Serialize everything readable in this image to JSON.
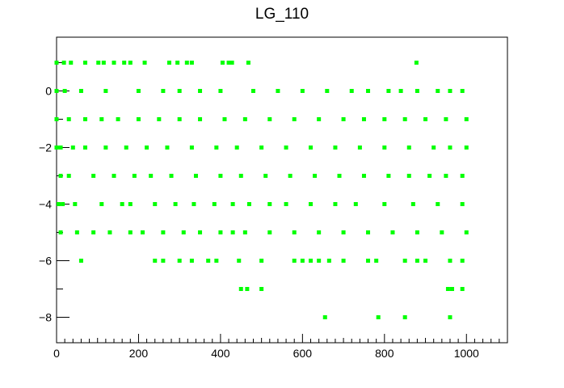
{
  "chart_data": {
    "type": "scatter",
    "title": "LG_110",
    "xlabel": "",
    "ylabel": "",
    "xlim": [
      0,
      1100
    ],
    "ylim": [
      -8.9,
      1.9
    ],
    "x_ticks": [
      0,
      200,
      400,
      600,
      800,
      1000
    ],
    "y_ticks": [
      -8,
      -6,
      -4,
      -2,
      0
    ],
    "x_tick_labels": [
      "0",
      "200",
      "400",
      "600",
      "800",
      "1000"
    ],
    "y_tick_labels": [
      "−8",
      "−6",
      "−4",
      "−2",
      "0"
    ],
    "grid": false,
    "legend": "none",
    "marker_color": "#00ff00",
    "frame_color": "#000000",
    "series": [
      {
        "points": [
          [
            0,
            1
          ],
          [
            18,
            1
          ],
          [
            35,
            1
          ],
          [
            70,
            1
          ],
          [
            102,
            1
          ],
          [
            115,
            1
          ],
          [
            140,
            1
          ],
          [
            165,
            1
          ],
          [
            180,
            1
          ],
          [
            215,
            1
          ],
          [
            275,
            1
          ],
          [
            295,
            1
          ],
          [
            318,
            1
          ],
          [
            330,
            1
          ],
          [
            405,
            1
          ],
          [
            420,
            1
          ],
          [
            428,
            1
          ],
          [
            468,
            1
          ],
          [
            878,
            1
          ],
          [
            0,
            0
          ],
          [
            20,
            0
          ],
          [
            60,
            0
          ],
          [
            120,
            0
          ],
          [
            200,
            0
          ],
          [
            260,
            0
          ],
          [
            300,
            0
          ],
          [
            350,
            0
          ],
          [
            400,
            0
          ],
          [
            480,
            0
          ],
          [
            540,
            0
          ],
          [
            600,
            0
          ],
          [
            660,
            0
          ],
          [
            720,
            0
          ],
          [
            760,
            0
          ],
          [
            810,
            0
          ],
          [
            840,
            0
          ],
          [
            880,
            0
          ],
          [
            930,
            0
          ],
          [
            960,
            0
          ],
          [
            990,
            0
          ],
          [
            0,
            -1
          ],
          [
            30,
            -1
          ],
          [
            70,
            -1
          ],
          [
            110,
            -1
          ],
          [
            150,
            -1
          ],
          [
            200,
            -1
          ],
          [
            250,
            -1
          ],
          [
            300,
            -1
          ],
          [
            350,
            -1
          ],
          [
            410,
            -1
          ],
          [
            460,
            -1
          ],
          [
            520,
            -1
          ],
          [
            580,
            -1
          ],
          [
            640,
            -1
          ],
          [
            700,
            -1
          ],
          [
            750,
            -1
          ],
          [
            800,
            -1
          ],
          [
            850,
            -1
          ],
          [
            900,
            -1
          ],
          [
            950,
            -1
          ],
          [
            1000,
            -1
          ],
          [
            0,
            -2
          ],
          [
            10,
            -2
          ],
          [
            40,
            -2
          ],
          [
            70,
            -2
          ],
          [
            120,
            -2
          ],
          [
            170,
            -2
          ],
          [
            220,
            -2
          ],
          [
            270,
            -2
          ],
          [
            330,
            -2
          ],
          [
            390,
            -2
          ],
          [
            440,
            -2
          ],
          [
            500,
            -2
          ],
          [
            560,
            -2
          ],
          [
            620,
            -2
          ],
          [
            680,
            -2
          ],
          [
            740,
            -2
          ],
          [
            800,
            -2
          ],
          [
            860,
            -2
          ],
          [
            920,
            -2
          ],
          [
            960,
            -2
          ],
          [
            1000,
            -2
          ],
          [
            10,
            -3
          ],
          [
            30,
            -3
          ],
          [
            90,
            -3
          ],
          [
            140,
            -3
          ],
          [
            190,
            -3
          ],
          [
            230,
            -3
          ],
          [
            280,
            -3
          ],
          [
            340,
            -3
          ],
          [
            400,
            -3
          ],
          [
            450,
            -3
          ],
          [
            510,
            -3
          ],
          [
            570,
            -3
          ],
          [
            630,
            -3
          ],
          [
            690,
            -3
          ],
          [
            750,
            -3
          ],
          [
            810,
            -3
          ],
          [
            860,
            -3
          ],
          [
            910,
            -3
          ],
          [
            950,
            -3
          ],
          [
            990,
            -3
          ],
          [
            5,
            -4
          ],
          [
            15,
            -4
          ],
          [
            45,
            -4
          ],
          [
            110,
            -4
          ],
          [
            160,
            -4
          ],
          [
            180,
            -4
          ],
          [
            240,
            -4
          ],
          [
            290,
            -4
          ],
          [
            335,
            -4
          ],
          [
            385,
            -4
          ],
          [
            430,
            -4
          ],
          [
            470,
            -4
          ],
          [
            520,
            -4
          ],
          [
            560,
            -4
          ],
          [
            620,
            -4
          ],
          [
            680,
            -4
          ],
          [
            730,
            -4
          ],
          [
            800,
            -4
          ],
          [
            870,
            -4
          ],
          [
            930,
            -4
          ],
          [
            990,
            -4
          ],
          [
            10,
            -5
          ],
          [
            50,
            -5
          ],
          [
            90,
            -5
          ],
          [
            130,
            -5
          ],
          [
            180,
            -5
          ],
          [
            210,
            -5
          ],
          [
            260,
            -5
          ],
          [
            310,
            -5
          ],
          [
            350,
            -5
          ],
          [
            400,
            -5
          ],
          [
            430,
            -5
          ],
          [
            460,
            -5
          ],
          [
            520,
            -5
          ],
          [
            580,
            -5
          ],
          [
            640,
            -5
          ],
          [
            700,
            -5
          ],
          [
            760,
            -5
          ],
          [
            820,
            -5
          ],
          [
            880,
            -5
          ],
          [
            940,
            -5
          ],
          [
            1000,
            -5
          ],
          [
            60,
            -6
          ],
          [
            240,
            -6
          ],
          [
            260,
            -6
          ],
          [
            300,
            -6
          ],
          [
            330,
            -6
          ],
          [
            370,
            -6
          ],
          [
            390,
            -6
          ],
          [
            445,
            -6
          ],
          [
            500,
            -6
          ],
          [
            580,
            -6
          ],
          [
            600,
            -6
          ],
          [
            620,
            -6
          ],
          [
            640,
            -6
          ],
          [
            665,
            -6
          ],
          [
            700,
            -6
          ],
          [
            760,
            -6
          ],
          [
            780,
            -6
          ],
          [
            850,
            -6
          ],
          [
            880,
            -6
          ],
          [
            900,
            -6
          ],
          [
            960,
            -6
          ],
          [
            990,
            -6
          ],
          [
            450,
            -7
          ],
          [
            465,
            -7
          ],
          [
            500,
            -7
          ],
          [
            955,
            -7
          ],
          [
            965,
            -7
          ],
          [
            990,
            -7
          ],
          [
            655,
            -8
          ],
          [
            785,
            -8
          ],
          [
            850,
            -8
          ],
          [
            960,
            -8
          ]
        ]
      }
    ]
  }
}
